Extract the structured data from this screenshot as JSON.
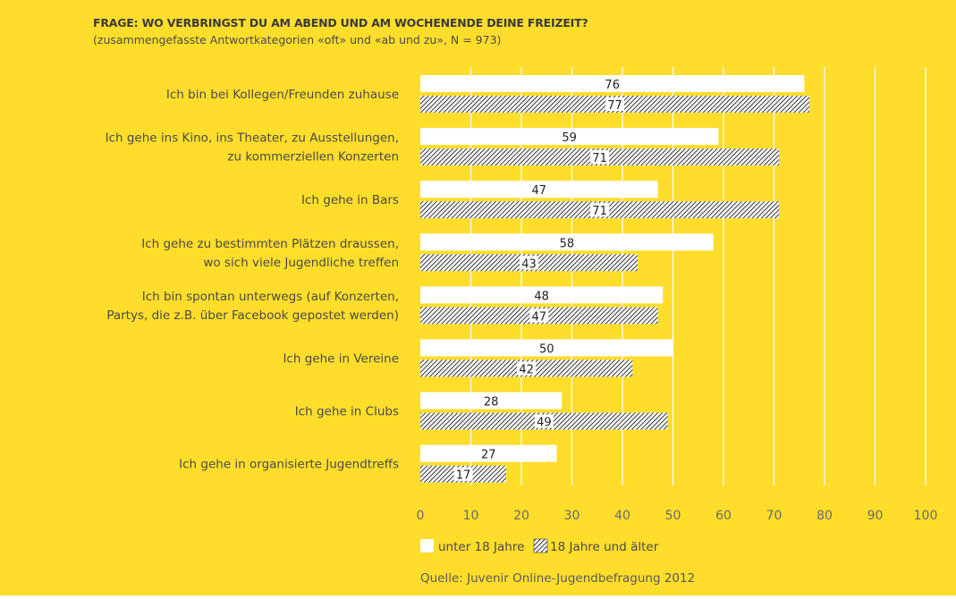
{
  "page": {
    "title": "FRAGE: WO VERBRINGST DU AM ABEND UND AM WOCHENENDE DEINE FREIZEIT?",
    "subtitle": "(zusammengefasste Antwortkategorien «oft» und «ab und zu», N = 973)",
    "source": "Quelle: Juvenir Online-Jugendbefragung 2012",
    "background_color": "#fedd2b",
    "bar_color_solid": "#ffffff",
    "bar_color_hatched": "#3f3f3f"
  },
  "chart_data": {
    "type": "bar",
    "orientation": "horizontal",
    "title": "FRAGE: WO VERBRINGST DU AM ABEND UND AM WOCHENENDE DEINE FREIZEIT?",
    "subtitle": "(zusammengefasste Antwortkategorien «oft» und «ab und zu», N = 973)",
    "categories": [
      [
        "Ich bin bei Kollegen/Freunden zuhause"
      ],
      [
        "Ich gehe ins Kino, ins Theater, zu Ausstellungen,",
        "zu kommerziellen Konzerten"
      ],
      [
        "Ich gehe in Bars"
      ],
      [
        "Ich gehe zu bestimmten Plätzen draussen,",
        "wo sich viele Jugendliche treffen"
      ],
      [
        "Ich bin spontan unterwegs (auf Konzerten,",
        "Partys, die z.B. über Facebook gepostet werden)"
      ],
      [
        "Ich gehe in Vereine"
      ],
      [
        "Ich gehe in Clubs"
      ],
      [
        "Ich gehe in organisierte Jugendtreffs"
      ]
    ],
    "series": [
      {
        "name": "unter 18 Jahre",
        "style": "solid-white",
        "values": [
          76,
          59,
          47,
          58,
          48,
          50,
          28,
          27
        ]
      },
      {
        "name": "18 Jahre und älter",
        "style": "hatched",
        "values": [
          77,
          71,
          71,
          43,
          47,
          42,
          49,
          17
        ]
      }
    ],
    "xlim": [
      0,
      100
    ],
    "xticks": [
      0,
      10,
      20,
      30,
      40,
      50,
      60,
      70,
      80,
      90,
      100
    ],
    "grid": "vertical-white",
    "legend_position": "bottom"
  }
}
